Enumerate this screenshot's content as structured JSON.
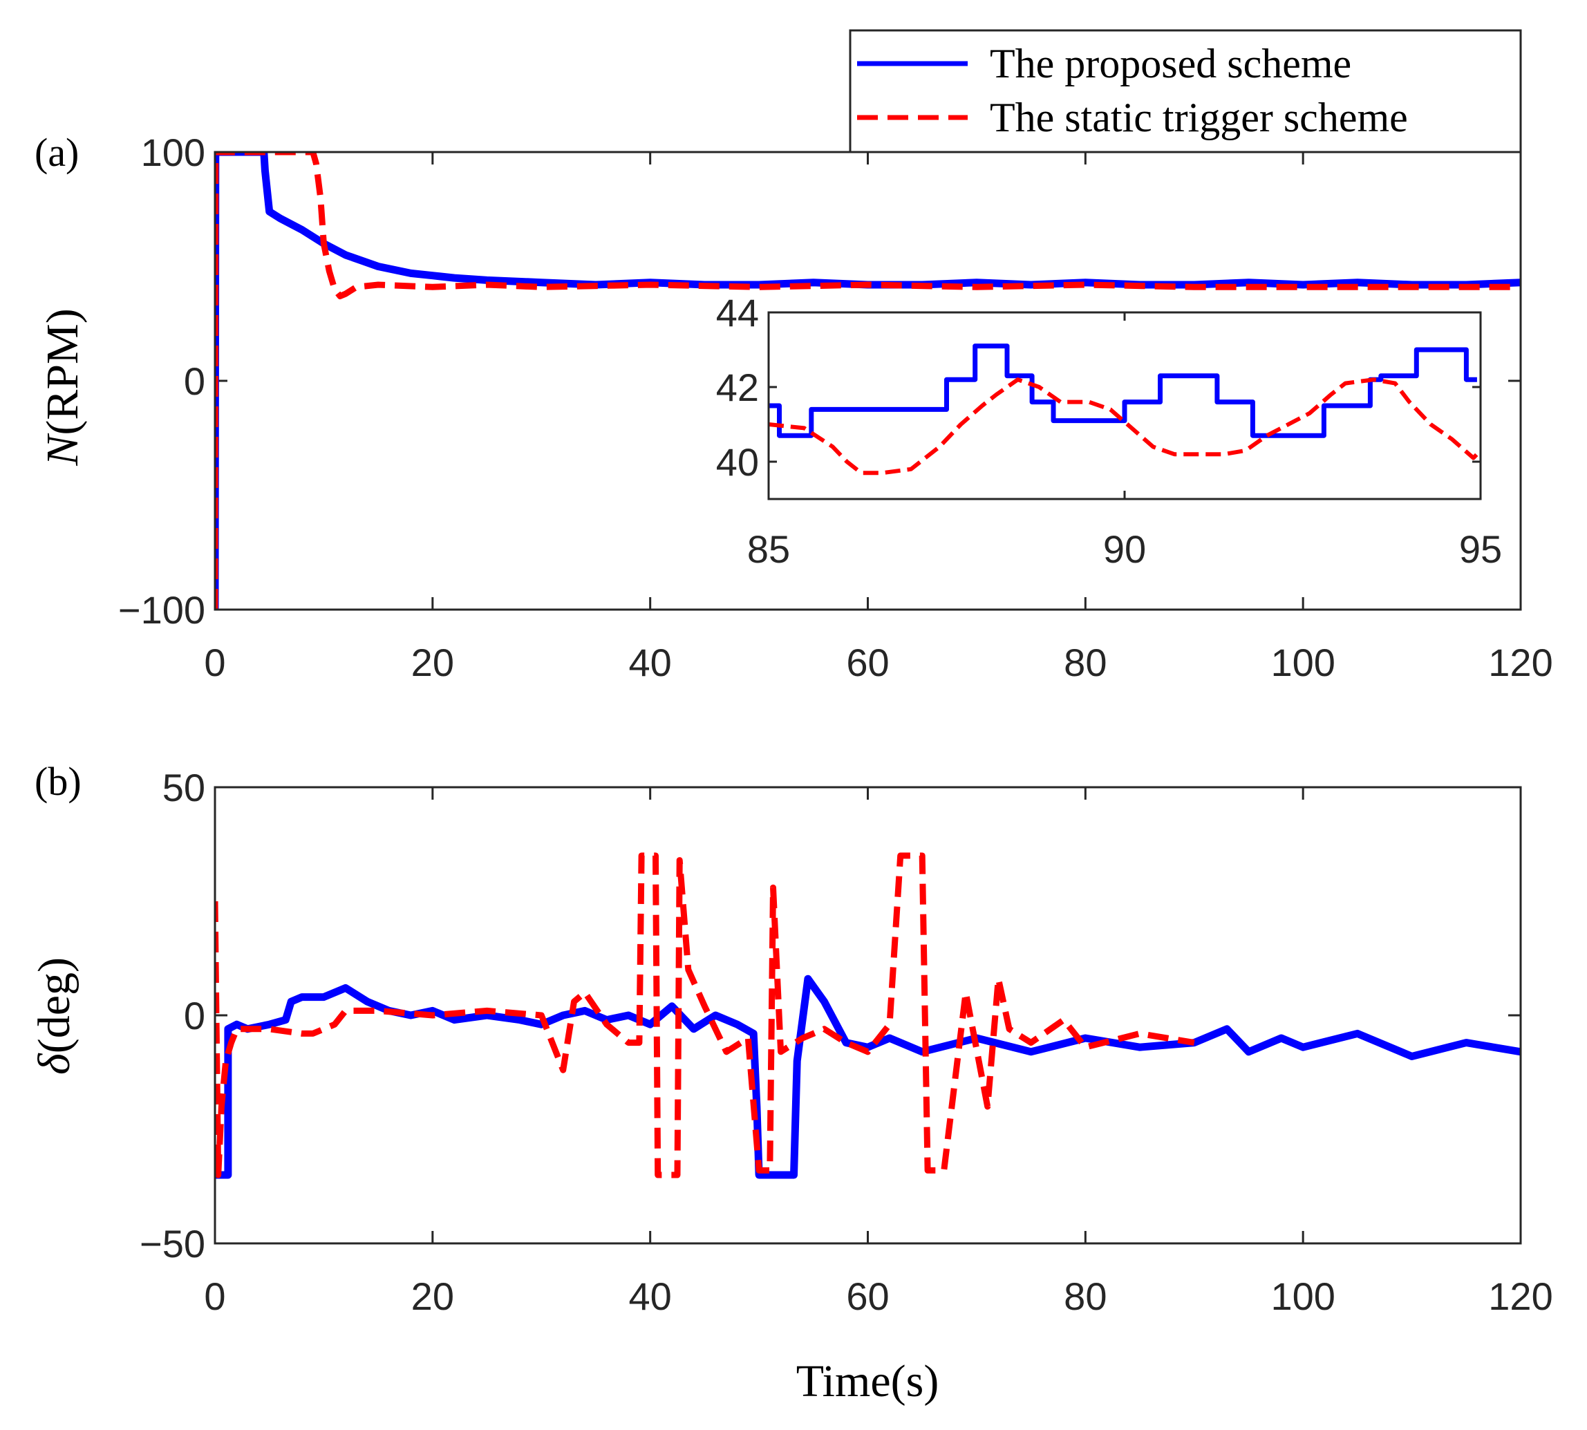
{
  "chart_data": [
    {
      "panel": "(a)",
      "type": "line",
      "ylabel_symbol": "N",
      "ylabel_unit": "(RPM)",
      "xlim": [
        0,
        120
      ],
      "ylim": [
        -100,
        100
      ],
      "xticks": [
        0,
        20,
        40,
        60,
        80,
        100,
        120
      ],
      "yticks": [
        -100,
        0,
        100
      ],
      "xticklabels": [
        "0",
        "20",
        "40",
        "60",
        "80",
        "100",
        "120"
      ],
      "yticklabels": [
        "−100",
        "0",
        "100"
      ],
      "legend": {
        "position": "top-right",
        "entries": [
          {
            "label": "The proposed scheme",
            "color": "#0000ff",
            "style": "solid"
          },
          {
            "label": "The static trigger scheme",
            "color": "#ff0000",
            "style": "dashed"
          }
        ]
      },
      "series": [
        {
          "name": "The proposed scheme",
          "color": "#0000ff",
          "style": "solid",
          "x": [
            0,
            0.05,
            4.5,
            4.6,
            5,
            6,
            8,
            10,
            12,
            15,
            18,
            20,
            22,
            25,
            30,
            35,
            40,
            45,
            50,
            55,
            60,
            65,
            70,
            75,
            80,
            85,
            90,
            95,
            100,
            105,
            110,
            115,
            120
          ],
          "y": [
            -100,
            100,
            100,
            92,
            74,
            71,
            66,
            60,
            55,
            50,
            47,
            46,
            45,
            44,
            43,
            42,
            43,
            42,
            42,
            43,
            42,
            42,
            43,
            42,
            43,
            42,
            42,
            43,
            42,
            43,
            42,
            42,
            43
          ]
        },
        {
          "name": "The static trigger scheme",
          "color": "#ff0000",
          "style": "dashed",
          "x": [
            0,
            0.05,
            9,
            9.3,
            9.7,
            10,
            10.5,
            11,
            11.5,
            12,
            13,
            15,
            20,
            25,
            30,
            40,
            50,
            60,
            70,
            80,
            90,
            100,
            110,
            120
          ],
          "y": [
            -100,
            100,
            100,
            95,
            80,
            60,
            48,
            40,
            37,
            38,
            41,
            42,
            41,
            42,
            41,
            42,
            41,
            42,
            41,
            42,
            41,
            41,
            41,
            41
          ]
        }
      ],
      "inset": {
        "xlim": [
          85,
          95
        ],
        "ylim": [
          39,
          44
        ],
        "xticks": [
          85,
          90,
          95
        ],
        "yticks": [
          40,
          42,
          44
        ],
        "xticklabels": [
          "85",
          "90",
          "95"
        ],
        "yticklabels": [
          "40",
          "42",
          "44"
        ],
        "series": [
          {
            "name": "The proposed scheme",
            "color": "#0000ff",
            "style": "solid",
            "x": [
              85,
              85.15,
              85.15,
              85.6,
              85.6,
              87.5,
              87.5,
              87.9,
              87.9,
              88.35,
              88.35,
              88.7,
              88.7,
              89.0,
              89.0,
              90.0,
              90.0,
              90.5,
              90.5,
              91.3,
              91.3,
              91.8,
              91.8,
              92.6,
              92.6,
              92.8,
              92.8,
              93.45,
              93.45,
              93.6,
              93.6,
              94.1,
              94.1,
              94.8,
              94.8,
              94.95
            ],
            "y": [
              41.5,
              41.5,
              40.7,
              40.7,
              41.4,
              41.4,
              42.2,
              42.2,
              43.1,
              43.1,
              42.3,
              42.3,
              41.6,
              41.6,
              41.1,
              41.1,
              41.6,
              41.6,
              42.3,
              42.3,
              41.6,
              41.6,
              40.7,
              40.7,
              40.7,
              40.7,
              41.5,
              41.5,
              42.2,
              42.2,
              42.3,
              42.3,
              43.0,
              43.0,
              42.2,
              42.2
            ]
          },
          {
            "name": "The static trigger scheme",
            "color": "#ff0000",
            "style": "dashed",
            "x": [
              85,
              85.5,
              85.9,
              86.1,
              86.3,
              86.6,
              87.0,
              87.4,
              87.7,
              88.0,
              88.2,
              88.5,
              88.8,
              89.1,
              89.5,
              89.8,
              90.1,
              90.4,
              90.7,
              91.0,
              91.4,
              91.7,
              92.0,
              92.3,
              92.6,
              92.9,
              93.1,
              93.5,
              93.8,
              94.0,
              94.3,
              94.6,
              94.9,
              95.0
            ],
            "y": [
              41.0,
              40.9,
              40.4,
              40.0,
              39.7,
              39.7,
              39.8,
              40.4,
              41.0,
              41.5,
              41.8,
              42.2,
              42.0,
              41.6,
              41.6,
              41.4,
              40.9,
              40.4,
              40.2,
              40.2,
              40.2,
              40.3,
              40.7,
              41.0,
              41.3,
              41.8,
              42.1,
              42.2,
              42.1,
              41.6,
              41.0,
              40.6,
              40.1,
              40.3
            ]
          }
        ]
      }
    },
    {
      "panel": "(b)",
      "type": "line",
      "ylabel_symbol": "δ",
      "ylabel_unit": "(deg)",
      "xlabel": "Time(s)",
      "xlim": [
        0,
        120
      ],
      "ylim": [
        -50,
        50
      ],
      "xticks": [
        0,
        20,
        40,
        60,
        80,
        100,
        120
      ],
      "yticks": [
        -50,
        0,
        50
      ],
      "xticklabels": [
        "0",
        "20",
        "40",
        "60",
        "80",
        "100",
        "120"
      ],
      "yticklabels": [
        "−50",
        "0",
        "50"
      ],
      "series": [
        {
          "name": "The proposed scheme",
          "color": "#0000ff",
          "style": "solid",
          "x": [
            0,
            1.2,
            1.2,
            2,
            3,
            5,
            6.5,
            7,
            8,
            10,
            12,
            14,
            16,
            18,
            20,
            22,
            25,
            28,
            30,
            32,
            34,
            36,
            38,
            40,
            42,
            44,
            46,
            48,
            49.5,
            49.8,
            50,
            53.2,
            53.5,
            54.5,
            56,
            58,
            60,
            62,
            65,
            70,
            75,
            80,
            85,
            90,
            93,
            95,
            98,
            100,
            105,
            110,
            115,
            120
          ],
          "y": [
            -35,
            -35,
            -3,
            -2,
            -3,
            -2,
            -1,
            3,
            4,
            4,
            6,
            3,
            1,
            0,
            1,
            -1,
            0,
            -1,
            -2,
            0,
            1,
            -1,
            0,
            -2,
            2,
            -3,
            0,
            -2,
            -4,
            -20,
            -35,
            -35,
            -10,
            8,
            3,
            -6,
            -7,
            -5,
            -8,
            -5,
            -8,
            -5,
            -7,
            -6,
            -3,
            -8,
            -5,
            -7,
            -4,
            -9,
            -6,
            -8
          ]
        },
        {
          "name": "The static trigger scheme",
          "color": "#ff0000",
          "style": "dashed",
          "x": [
            0,
            0.3,
            0.6,
            1,
            1.5,
            2,
            5,
            8,
            9,
            11,
            12,
            13,
            15,
            20,
            25,
            30,
            32,
            33,
            34,
            36,
            38,
            39,
            39.2,
            40.5,
            40.7,
            42.5,
            42.7,
            43.5,
            45,
            47,
            49,
            50,
            51,
            51.3,
            52,
            54,
            56,
            58,
            60,
            62,
            63,
            65,
            65.5,
            67,
            69,
            71,
            72,
            73,
            75,
            78,
            80,
            85,
            90
          ],
          "y": [
            25,
            -35,
            -20,
            -10,
            -6,
            -3,
            -3,
            -4,
            -4,
            -2,
            1,
            1,
            1,
            0,
            1,
            0,
            -12,
            3,
            5,
            -2,
            -6,
            -6,
            35,
            35,
            -35,
            -35,
            34,
            10,
            2,
            -8,
            -5,
            -34,
            -34,
            28,
            -8,
            -5,
            -3,
            -6,
            -8,
            -2,
            35,
            35,
            -34,
            -34,
            5,
            -20,
            8,
            -3,
            -6,
            -1,
            -7,
            -4,
            -6
          ]
        }
      ]
    }
  ]
}
